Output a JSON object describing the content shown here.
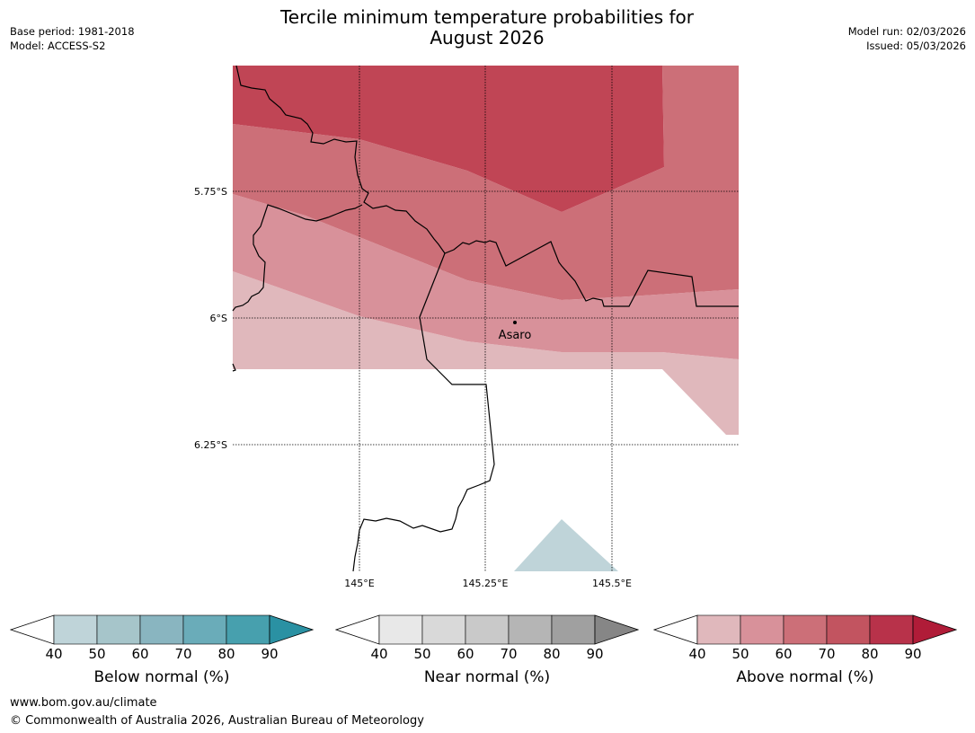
{
  "title": {
    "line1": "Tercile minimum temperature probabilities for",
    "line2": "August 2026"
  },
  "meta_left": {
    "base_period": "Base period: 1981-2018",
    "model": "Model: ACCESS-S2"
  },
  "meta_right": {
    "model_run": "Model run: 02/03/2026",
    "issued": "Issued: 05/03/2026"
  },
  "map": {
    "lat_labels": [
      "5.75°S",
      "6°S",
      "6.25°S"
    ],
    "lon_labels": [
      "145°E",
      "145.25°E",
      "145.5°E"
    ],
    "place": "Asaro"
  },
  "legends": [
    {
      "label": "Below normal (%)",
      "ticks": [
        "40",
        "50",
        "60",
        "70",
        "80",
        "90"
      ],
      "colors": [
        "#bfd4d9",
        "#a6c5ca",
        "#89b5c0",
        "#6aacb9",
        "#47a0ae",
        "#2a91a3"
      ]
    },
    {
      "label": "Near normal (%)",
      "ticks": [
        "40",
        "50",
        "60",
        "70",
        "80",
        "90"
      ],
      "colors": [
        "#e8e8e8",
        "#d9d9d9",
        "#c9c9c9",
        "#b5b5b5",
        "#a0a0a0",
        "#868686"
      ]
    },
    {
      "label": "Above normal (%)",
      "ticks": [
        "40",
        "50",
        "60",
        "70",
        "80",
        "90"
      ],
      "colors": [
        "#e0b8bc",
        "#d8919a",
        "#cc6f78",
        "#c25460",
        "#b8324a",
        "#b01c38"
      ]
    }
  ],
  "footer": {
    "url": "www.bom.gov.au/climate",
    "copyright": "© Commonwealth of Australia 2026, Australian Bureau of Meteorology"
  }
}
